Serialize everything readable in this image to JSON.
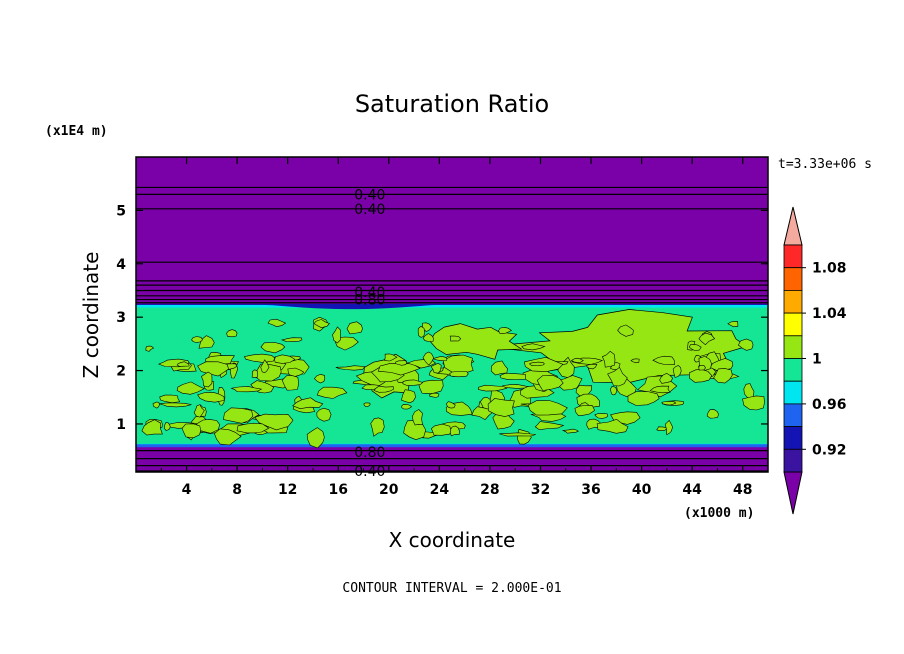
{
  "chart_data": {
    "type": "heatmap",
    "title": "Saturation Ratio",
    "xlabel": "X coordinate",
    "ylabel": "Z coordinate",
    "x_unit": "(x1000 m)",
    "y_unit": "(x1E4 m)",
    "time_label": "t=3.33e+06 s",
    "footer": "CONTOUR INTERVAL = 2.000E-01",
    "xlim": [
      0,
      50
    ],
    "ylim": [
      0.1,
      6.0
    ],
    "x_ticks": [
      "4",
      "8",
      "12",
      "16",
      "20",
      "24",
      "28",
      "32",
      "36",
      "40",
      "44",
      "48"
    ],
    "y_ticks": [
      "1",
      "2",
      "3",
      "4",
      "5"
    ],
    "colorbar": {
      "ticks": [
        "0.92",
        "0.96",
        "1",
        "1.04",
        "1.08"
      ],
      "levels": [
        {
          "label": "below",
          "color": "#7a00a8"
        },
        {
          "label": "0.90-0.92",
          "color": "#3a14a0"
        },
        {
          "label": "0.92-0.94",
          "color": "#1414b4"
        },
        {
          "label": "0.94-0.96",
          "color": "#1e64f0"
        },
        {
          "label": "0.96-0.98",
          "color": "#00e6f0"
        },
        {
          "label": "0.98-1.00",
          "color": "#14e696"
        },
        {
          "label": "1.00-1.02",
          "color": "#96e614"
        },
        {
          "label": "1.02-1.04",
          "color": "#ffff00"
        },
        {
          "label": "1.04-1.06",
          "color": "#ffaa00"
        },
        {
          "label": "1.06-1.08",
          "color": "#ff6400"
        },
        {
          "label": "1.08-1.10",
          "color": "#ff2828"
        },
        {
          "label": "above",
          "color": "#f5aaa0"
        }
      ]
    },
    "contour_labels": [
      {
        "text": "0.40",
        "x": 18.5,
        "z": 5.3
      },
      {
        "text": "0.40",
        "x": 18.5,
        "z": 5.03
      },
      {
        "text": "0.40",
        "x": 18.5,
        "z": 3.47
      },
      {
        "text": "0.80",
        "x": 18.5,
        "z": 3.33
      },
      {
        "text": "0.80",
        "x": 18.5,
        "z": 0.47
      },
      {
        "text": "0.40",
        "x": 18.5,
        "z": 0.12
      }
    ],
    "horizontal_contours_z": [
      5.43,
      5.3,
      5.03,
      4.03,
      3.68,
      3.6,
      3.5,
      3.4,
      3.33,
      3.27,
      0.5,
      0.35,
      0.22,
      0.12
    ],
    "regions": {
      "cloud_layer_z": [
        0.6,
        3.2
      ],
      "dry_background": "below",
      "cloud_top_band": "0.92-0.94"
    }
  }
}
